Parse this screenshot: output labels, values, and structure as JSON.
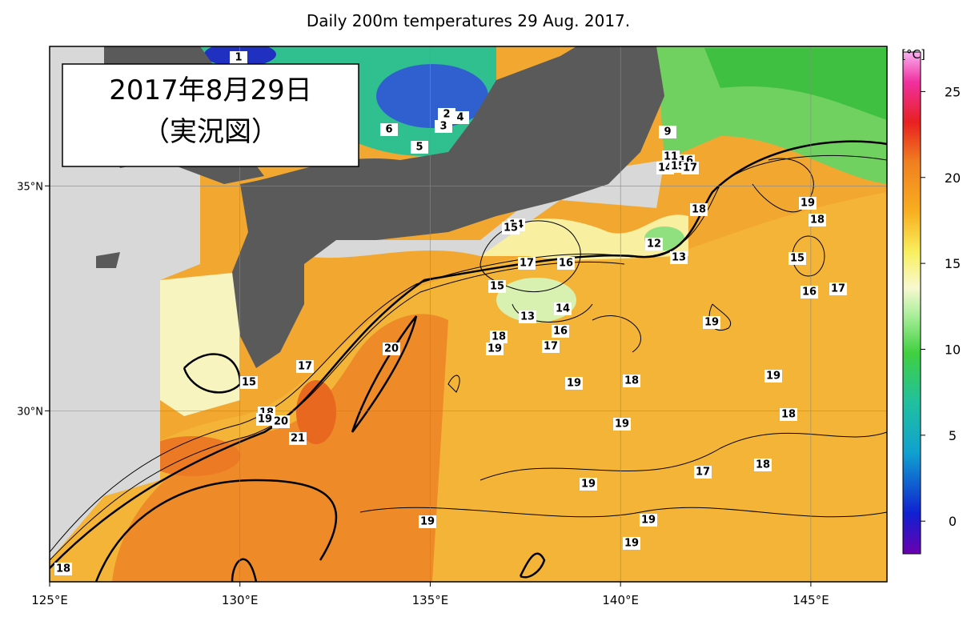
{
  "title": "Daily 200m temperatures 29 Aug. 2017.",
  "date_box": {
    "line1": "2017年8月29日",
    "line2": "（実況図）"
  },
  "lon_range": [
    125,
    147
  ],
  "lat_range": [
    26.2,
    38.1
  ],
  "lon_ticks": [
    {
      "value": 125,
      "label": "125°E"
    },
    {
      "value": 130,
      "label": "130°E"
    },
    {
      "value": 135,
      "label": "135°E"
    },
    {
      "value": 140,
      "label": "140°E"
    },
    {
      "value": 145,
      "label": "145°E"
    }
  ],
  "lat_ticks": [
    {
      "value": 35,
      "label": "35°N"
    },
    {
      "value": 30,
      "label": "30°N"
    }
  ],
  "colorbar": {
    "unit": "[°C]",
    "range": [
      -1.9,
      27.3
    ],
    "ticks": [
      0,
      5,
      10,
      15,
      20,
      25
    ]
  },
  "contour_labels": [
    1,
    6,
    5,
    2,
    4,
    3,
    9,
    11,
    16,
    14,
    15,
    17,
    18,
    19,
    18,
    15,
    16,
    17,
    14,
    15,
    17,
    16,
    12,
    13,
    15,
    13,
    14,
    16,
    18,
    19,
    17,
    19,
    20,
    17,
    15,
    19,
    18,
    19,
    18,
    19,
    20,
    18,
    19,
    21,
    17,
    18,
    19,
    19,
    19,
    19,
    18
  ]
}
